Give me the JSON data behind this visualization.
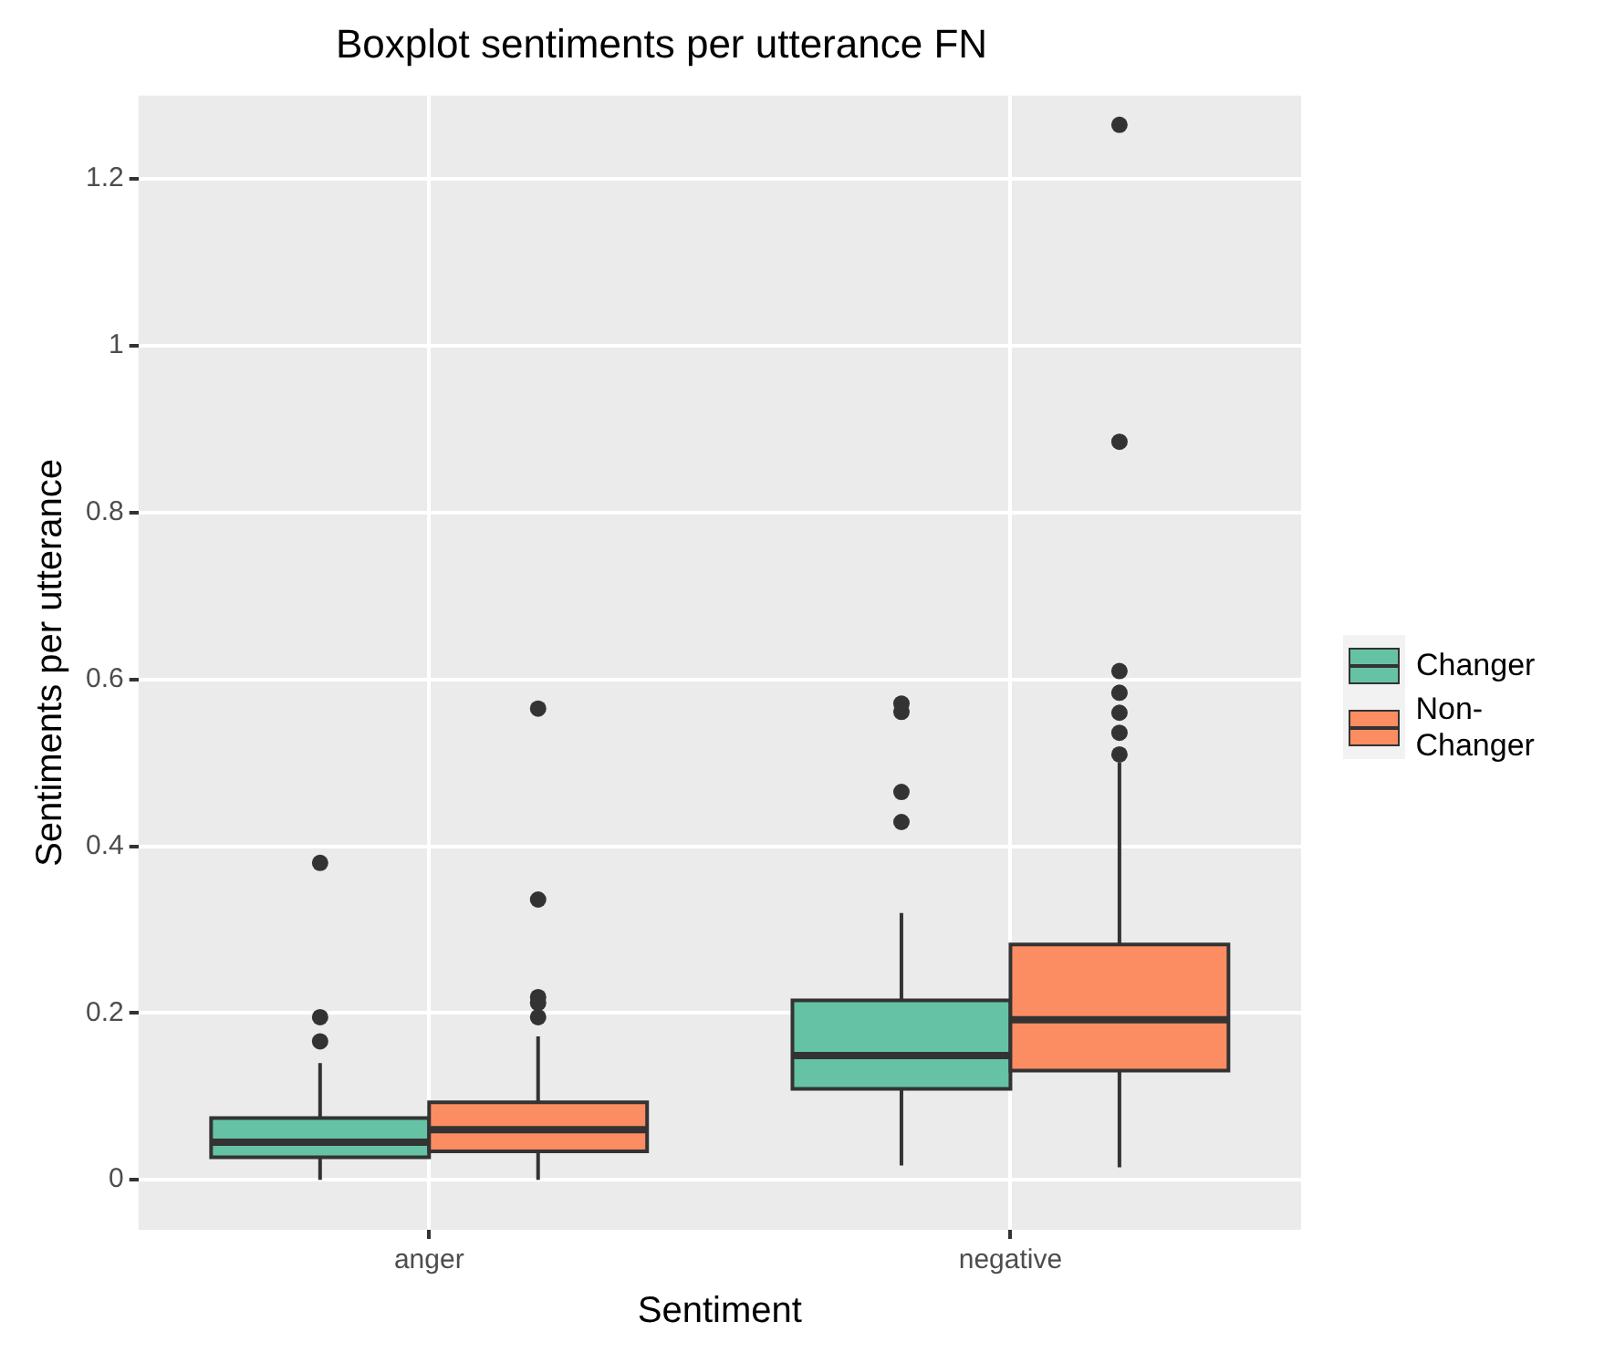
{
  "chart_data": {
    "type": "box",
    "title": "Boxplot sentiments per utterance FN",
    "xlabel": "Sentiment",
    "ylabel": "Sentiments per utterance",
    "categories": [
      "anger",
      "negative"
    ],
    "series": [
      {
        "name": "Changer",
        "color": "#66c2a5",
        "boxes": [
          {
            "low": 0,
            "q1": 0.027,
            "median": 0.045,
            "q3": 0.074,
            "high": 0.14,
            "outliers": [
              0.38,
              0.195,
              0.166
            ]
          },
          {
            "low": 0.017,
            "q1": 0.109,
            "median": 0.149,
            "q3": 0.215,
            "high": 0.32,
            "outliers": [
              0.571,
              0.561,
              0.465,
              0.429
            ]
          }
        ]
      },
      {
        "name": "Non-Changer",
        "color": "#fc8d62",
        "boxes": [
          {
            "low": 0,
            "q1": 0.034,
            "median": 0.06,
            "q3": 0.093,
            "high": 0.172,
            "outliers": [
              0.565,
              0.336,
              0.219,
              0.212,
              0.195
            ]
          },
          {
            "low": 0.015,
            "q1": 0.131,
            "median": 0.192,
            "q3": 0.282,
            "high": 0.5,
            "outliers": [
              1.265,
              0.885,
              0.61,
              0.584,
              0.56,
              0.536,
              0.51
            ]
          }
        ]
      }
    ],
    "ylim": [
      -0.06,
      1.3
    ],
    "yticks": [
      0,
      0.2,
      0.4,
      0.6,
      0.8,
      1,
      1.2
    ],
    "grid": true,
    "legend": "right"
  }
}
